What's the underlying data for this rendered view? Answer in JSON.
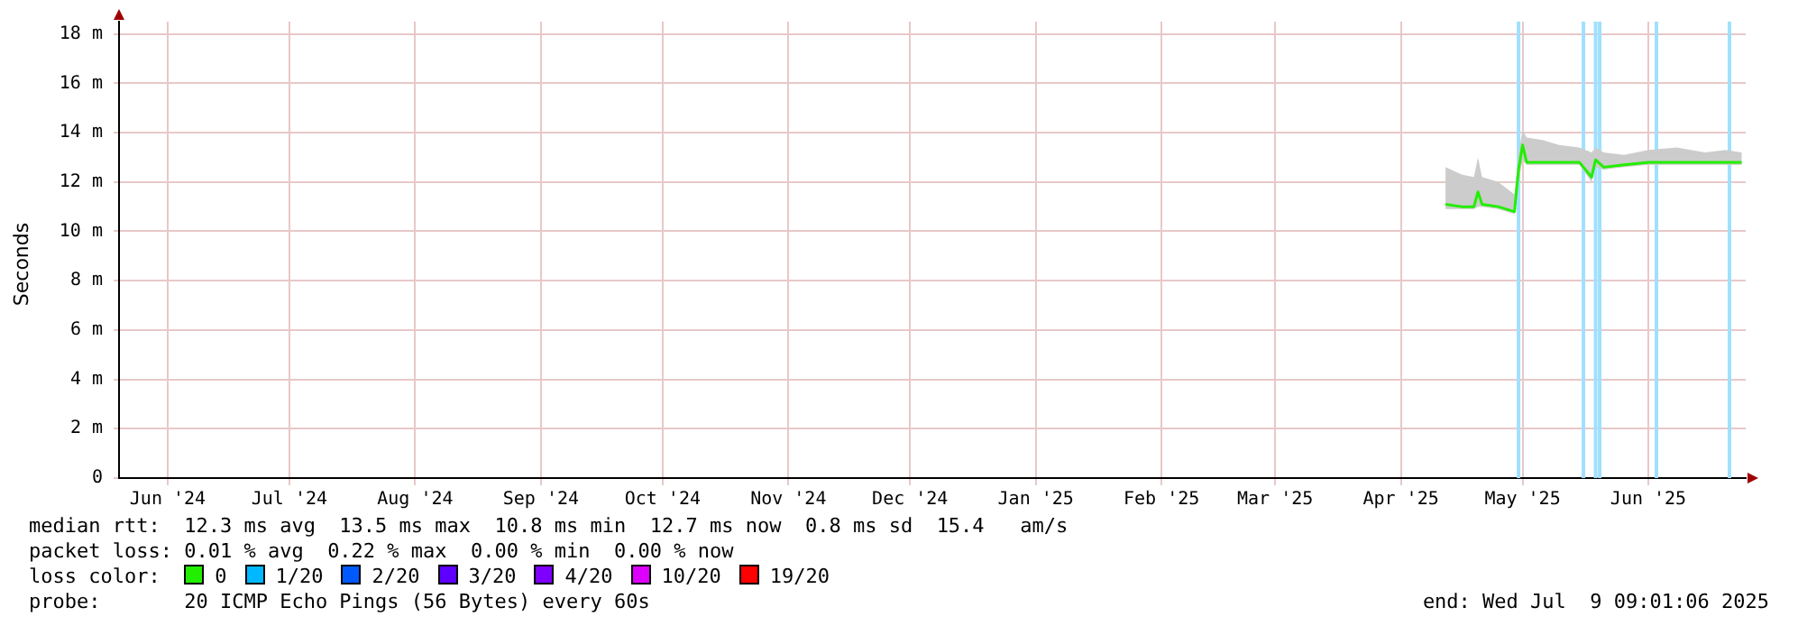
{
  "chart_data": {
    "type": "line",
    "ylabel": "Seconds",
    "legend": "bottom",
    "legend_title": "loss color:",
    "grid": true,
    "marker": "none",
    "line_style": "solid",
    "x": [
      "2025-04-12",
      "2025-04-16",
      "2025-04-19",
      "2025-04-20",
      "2025-04-21",
      "2025-04-25",
      "2025-04-29",
      "2025-04-30",
      "2025-05-01",
      "2025-05-02",
      "2025-05-06",
      "2025-05-10",
      "2025-05-15",
      "2025-05-18",
      "2025-05-19",
      "2025-05-21",
      "2025-05-26",
      "2025-06-01",
      "2025-06-08",
      "2025-06-15",
      "2025-06-20",
      "2025-06-24"
    ],
    "series": [
      {
        "name": "0",
        "color": "#22ee00",
        "values": [
          11.1,
          11.0,
          11.0,
          11.6,
          11.1,
          11.0,
          10.8,
          12.5,
          13.5,
          12.8,
          12.8,
          12.8,
          12.8,
          12.2,
          12.9,
          12.6,
          12.7,
          12.8,
          12.8,
          12.8,
          12.8,
          12.8
        ],
        "lower": [
          10.9,
          10.9,
          10.9,
          11.0,
          11.0,
          10.9,
          10.7,
          12.0,
          12.9,
          12.7,
          12.7,
          12.7,
          12.7,
          12.0,
          12.6,
          12.5,
          12.6,
          12.7,
          12.7,
          12.7,
          12.7,
          12.7
        ],
        "upper": [
          12.6,
          12.3,
          12.2,
          13.0,
          12.2,
          12.0,
          11.5,
          13.2,
          14.1,
          13.8,
          13.7,
          13.5,
          13.4,
          13.2,
          13.4,
          13.2,
          13.1,
          13.3,
          13.4,
          13.2,
          13.3,
          13.2
        ]
      },
      {
        "name": "1/20",
        "color": "#00b8ff",
        "values": [
          null,
          null,
          null,
          null,
          null,
          null,
          null,
          null,
          null,
          null,
          null,
          null,
          null,
          null,
          null,
          null,
          null,
          null,
          null,
          null,
          null,
          null
        ]
      },
      {
        "name": "2/20",
        "color": "#0059ff",
        "values": [
          null,
          null,
          null,
          null,
          null,
          null,
          null,
          null,
          null,
          null,
          null,
          null,
          null,
          null,
          null,
          null,
          null,
          null,
          null,
          null,
          null,
          null
        ]
      },
      {
        "name": "3/20",
        "color": "#5e00ff",
        "values": [
          null,
          null,
          null,
          null,
          null,
          null,
          null,
          null,
          null,
          null,
          null,
          null,
          null,
          null,
          null,
          null,
          null,
          null,
          null,
          null,
          null,
          null
        ]
      },
      {
        "name": "4/20",
        "color": "#7e00ff",
        "values": [
          null,
          null,
          null,
          null,
          null,
          null,
          null,
          null,
          null,
          null,
          null,
          null,
          null,
          null,
          null,
          null,
          null,
          null,
          null,
          null,
          null,
          null
        ]
      },
      {
        "name": "10/20",
        "color": "#dd00ff",
        "values": [
          null,
          null,
          null,
          null,
          null,
          null,
          null,
          null,
          null,
          null,
          null,
          null,
          null,
          null,
          null,
          null,
          null,
          null,
          null,
          null,
          null,
          null
        ]
      },
      {
        "name": "19/20",
        "color": "#ff0000",
        "values": [
          null,
          null,
          null,
          null,
          null,
          null,
          null,
          null,
          null,
          null,
          null,
          null,
          null,
          null,
          null,
          null,
          null,
          null,
          null,
          null,
          null,
          null
        ]
      }
    ],
    "xlim": [
      "2024-05-20",
      "2025-06-25"
    ],
    "xticks": [
      {
        "value": "2024-06-01",
        "label": "Jun '24"
      },
      {
        "value": "2024-07-01",
        "label": "Jul '24"
      },
      {
        "value": "2024-08-01",
        "label": "Aug '24"
      },
      {
        "value": "2024-09-01",
        "label": "Sep '24"
      },
      {
        "value": "2024-10-01",
        "label": "Oct '24"
      },
      {
        "value": "2024-11-01",
        "label": "Nov '24"
      },
      {
        "value": "2024-12-01",
        "label": "Dec '24"
      },
      {
        "value": "2025-01-01",
        "label": "Jan '25"
      },
      {
        "value": "2025-02-01",
        "label": "Feb '25"
      },
      {
        "value": "2025-03-01",
        "label": "Mar '25"
      },
      {
        "value": "2025-04-01",
        "label": "Apr '25"
      },
      {
        "value": "2025-05-01",
        "label": "May '25"
      },
      {
        "value": "2025-06-01",
        "label": "Jun '25"
      }
    ],
    "ylim": [
      0,
      18.5
    ],
    "yticks": [
      0,
      {
        "value": 2,
        "label": "2 m"
      },
      {
        "value": 4,
        "label": "4 m"
      },
      {
        "value": 6,
        "label": "6 m"
      },
      {
        "value": 8,
        "label": "8 m"
      },
      {
        "value": 10,
        "label": "10 m"
      },
      {
        "value": 12,
        "label": "12 m"
      },
      {
        "value": 14,
        "label": "14 m"
      },
      {
        "value": 16,
        "label": "16 m"
      },
      {
        "value": 18,
        "label": "18 m"
      }
    ],
    "ref_lines": [
      {
        "axis": "x",
        "value": "2025-04-30",
        "color": "#a0e0ff"
      },
      {
        "axis": "x",
        "value": "2025-05-16",
        "color": "#a0e0ff"
      },
      {
        "axis": "x",
        "value": "2025-05-19",
        "color": "#a0e0ff"
      },
      {
        "axis": "x",
        "value": "2025-05-20",
        "color": "#a0e0ff"
      },
      {
        "axis": "x",
        "value": "2025-06-03",
        "color": "#a0e0ff"
      },
      {
        "axis": "x",
        "value": "2025-06-21",
        "color": "#a0e0ff"
      }
    ],
    "annotations": [
      "median rtt:  12.3 ms avg  13.5 ms max  10.8 ms min  12.7 ms now  0.8 ms sd  15.4   am/s",
      "packet loss: 0.01 % avg  0.22 % max  0.00 % min  0.00 % now",
      "probe:       20 ICMP Echo Pings (56 Bytes) every 60s",
      "end: Wed Jul  9 09:01:06 2025"
    ]
  }
}
